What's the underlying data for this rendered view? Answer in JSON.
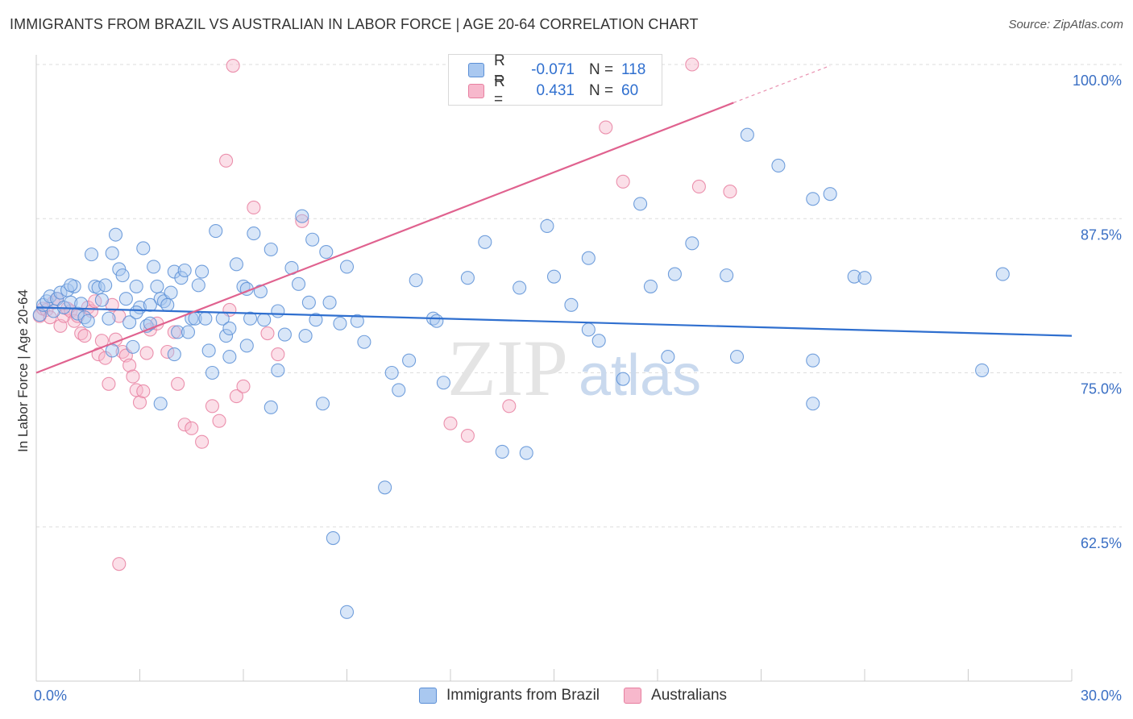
{
  "title": "IMMIGRANTS FROM BRAZIL VS AUSTRALIAN IN LABOR FORCE | AGE 20-64 CORRELATION CHART",
  "source": "Source: ZipAtlas.com",
  "watermark": {
    "zip": "ZIP",
    "atlas": "atlas"
  },
  "colors": {
    "blue_fill": "#a9c8f0",
    "blue_stroke": "#5b8fd6",
    "blue_line": "#2f6fcf",
    "pink_fill": "#f7b8cc",
    "pink_stroke": "#e77fa0",
    "pink_line": "#e0628f",
    "axis_label": "#3a6fc4",
    "grid": "#dddddd"
  },
  "legend_top": {
    "rows": [
      {
        "r_label": "R =",
        "r_value": "-0.071",
        "n_label": "N =",
        "n_value": "118"
      },
      {
        "r_label": "R =",
        "r_value": "0.431",
        "n_label": "N =",
        "n_value": "60"
      }
    ]
  },
  "chart_data": {
    "type": "scatter",
    "title": "IMMIGRANTS FROM BRAZIL VS AUSTRALIAN IN LABOR FORCE | AGE 20-64 CORRELATION CHART",
    "xlabel": "",
    "ylabel": "In Labor Force | Age 20-64",
    "xlim": [
      0,
      30
    ],
    "ylim": [
      50,
      100
    ],
    "x_tick_labels": [
      "0.0%",
      "30.0%"
    ],
    "y_ticks": [
      62.5,
      75.0,
      87.5,
      100.0
    ],
    "y_tick_labels": [
      "62.5%",
      "75.0%",
      "87.5%",
      "100.0%"
    ],
    "legend_position": "bottom",
    "series": [
      {
        "name": "Immigrants from Brazil",
        "r": -0.071,
        "n": 118,
        "trend": {
          "x": [
            0,
            30
          ],
          "y": [
            80.3,
            78.0
          ]
        },
        "points": [
          [
            0.1,
            79.7
          ],
          [
            0.2,
            80.5
          ],
          [
            0.3,
            80.8
          ],
          [
            0.4,
            81.2
          ],
          [
            0.5,
            80.0
          ],
          [
            0.6,
            81.0
          ],
          [
            0.7,
            81.5
          ],
          [
            0.8,
            80.3
          ],
          [
            0.9,
            81.7
          ],
          [
            1.0,
            80.7
          ],
          [
            1.1,
            82.0
          ],
          [
            1.2,
            79.8
          ],
          [
            1.3,
            80.6
          ],
          [
            1.4,
            79.5
          ],
          [
            1.5,
            79.2
          ],
          [
            1.6,
            84.6
          ],
          [
            1.7,
            82.0
          ],
          [
            1.8,
            81.9
          ],
          [
            1.9,
            80.9
          ],
          [
            2.0,
            82.1
          ],
          [
            2.1,
            79.4
          ],
          [
            2.2,
            84.7
          ],
          [
            2.3,
            86.2
          ],
          [
            2.4,
            83.4
          ],
          [
            2.5,
            82.9
          ],
          [
            2.6,
            81.0
          ],
          [
            2.7,
            79.1
          ],
          [
            2.8,
            77.1
          ],
          [
            2.9,
            82.0
          ],
          [
            3.0,
            80.3
          ],
          [
            3.1,
            85.1
          ],
          [
            3.2,
            78.8
          ],
          [
            3.3,
            79.0
          ],
          [
            3.4,
            83.6
          ],
          [
            3.5,
            82.0
          ],
          [
            3.6,
            81.0
          ],
          [
            3.7,
            80.8
          ],
          [
            3.8,
            80.5
          ],
          [
            3.9,
            81.5
          ],
          [
            4.0,
            83.2
          ],
          [
            4.1,
            78.3
          ],
          [
            4.2,
            82.7
          ],
          [
            4.3,
            83.3
          ],
          [
            4.4,
            78.3
          ],
          [
            4.5,
            79.4
          ],
          [
            4.6,
            79.4
          ],
          [
            4.7,
            82.1
          ],
          [
            4.8,
            83.2
          ],
          [
            4.9,
            79.4
          ],
          [
            5.0,
            76.8
          ],
          [
            5.2,
            86.5
          ],
          [
            5.4,
            79.4
          ],
          [
            5.5,
            78.0
          ],
          [
            5.6,
            78.6
          ],
          [
            5.8,
            83.8
          ],
          [
            6.0,
            82.0
          ],
          [
            6.1,
            81.8
          ],
          [
            6.2,
            79.4
          ],
          [
            6.3,
            86.3
          ],
          [
            6.5,
            81.6
          ],
          [
            6.6,
            79.3
          ],
          [
            6.8,
            85.0
          ],
          [
            7.0,
            80.0
          ],
          [
            7.2,
            78.1
          ],
          [
            7.4,
            83.5
          ],
          [
            7.6,
            82.2
          ],
          [
            7.7,
            87.7
          ],
          [
            7.8,
            78.0
          ],
          [
            8.0,
            85.8
          ],
          [
            8.1,
            79.3
          ],
          [
            8.4,
            84.8
          ],
          [
            8.5,
            80.7
          ],
          [
            8.8,
            79.0
          ],
          [
            9.0,
            83.6
          ],
          [
            9.3,
            79.2
          ],
          [
            10.3,
            75.0
          ],
          [
            10.5,
            73.6
          ],
          [
            11.0,
            82.5
          ],
          [
            11.5,
            79.4
          ],
          [
            11.6,
            79.2
          ],
          [
            12.5,
            82.7
          ],
          [
            13.0,
            85.6
          ],
          [
            14.0,
            81.9
          ],
          [
            14.8,
            86.9
          ],
          [
            15.0,
            82.8
          ],
          [
            15.5,
            80.5
          ],
          [
            16.0,
            84.3
          ],
          [
            16.3,
            77.6
          ],
          [
            17.0,
            74.5
          ],
          [
            17.5,
            88.7
          ],
          [
            17.8,
            82.0
          ],
          [
            18.5,
            83.0
          ],
          [
            19.0,
            85.5
          ],
          [
            20.0,
            82.9
          ],
          [
            20.6,
            94.3
          ],
          [
            21.5,
            91.8
          ],
          [
            22.5,
            89.1
          ],
          [
            23.0,
            89.5
          ],
          [
            23.7,
            82.8
          ],
          [
            24.0,
            82.7
          ],
          [
            20.3,
            76.3
          ],
          [
            22.5,
            72.5
          ],
          [
            18.3,
            76.3
          ],
          [
            10.8,
            76.0
          ],
          [
            9.5,
            77.5
          ],
          [
            11.8,
            74.2
          ],
          [
            13.5,
            68.6
          ],
          [
            14.2,
            68.5
          ],
          [
            16.0,
            78.5
          ],
          [
            6.8,
            72.2
          ],
          [
            7.9,
            80.7
          ],
          [
            8.3,
            72.5
          ],
          [
            9.0,
            55.6
          ],
          [
            5.1,
            75.0
          ],
          [
            5.6,
            76.3
          ],
          [
            6.1,
            77.2
          ],
          [
            7.0,
            75.2
          ],
          [
            3.6,
            72.5
          ],
          [
            2.2,
            76.8
          ],
          [
            8.6,
            61.6
          ],
          [
            10.1,
            65.7
          ],
          [
            4.0,
            76.5
          ],
          [
            3.3,
            80.5
          ],
          [
            22.5,
            76.0
          ],
          [
            27.4,
            75.2
          ],
          [
            28.0,
            83.0
          ],
          [
            1.0,
            82.1
          ],
          [
            2.9,
            79.9
          ]
        ]
      },
      {
        "name": "Australians",
        "r": 0.431,
        "n": 60,
        "trend": {
          "x": [
            0,
            20.2
          ],
          "y": [
            75.0,
            96.9
          ]
        },
        "trend_dashed": {
          "x": [
            20.2,
            23.0
          ],
          "y": [
            96.9,
            99.9
          ]
        },
        "points": [
          [
            0.1,
            79.6
          ],
          [
            0.2,
            80.2
          ],
          [
            0.3,
            80.1
          ],
          [
            0.4,
            79.5
          ],
          [
            0.5,
            80.7
          ],
          [
            0.6,
            81.0
          ],
          [
            0.7,
            78.8
          ],
          [
            0.8,
            79.6
          ],
          [
            0.9,
            80.2
          ],
          [
            1.0,
            80.0
          ],
          [
            1.1,
            79.2
          ],
          [
            1.2,
            79.6
          ],
          [
            1.3,
            78.2
          ],
          [
            1.4,
            78.0
          ],
          [
            1.5,
            80.3
          ],
          [
            1.6,
            80.0
          ],
          [
            1.7,
            80.8
          ],
          [
            1.8,
            76.5
          ],
          [
            1.9,
            77.6
          ],
          [
            2.0,
            76.2
          ],
          [
            2.1,
            74.1
          ],
          [
            2.2,
            80.5
          ],
          [
            2.3,
            77.7
          ],
          [
            2.4,
            79.6
          ],
          [
            2.5,
            76.7
          ],
          [
            2.6,
            76.4
          ],
          [
            2.7,
            75.6
          ],
          [
            2.8,
            74.7
          ],
          [
            2.9,
            73.6
          ],
          [
            3.0,
            72.6
          ],
          [
            3.1,
            73.5
          ],
          [
            3.2,
            76.6
          ],
          [
            3.3,
            78.5
          ],
          [
            3.5,
            79.0
          ],
          [
            3.8,
            76.7
          ],
          [
            4.0,
            78.3
          ],
          [
            4.1,
            74.1
          ],
          [
            4.3,
            70.8
          ],
          [
            4.5,
            70.5
          ],
          [
            4.8,
            69.4
          ],
          [
            5.1,
            72.3
          ],
          [
            5.3,
            71.1
          ],
          [
            5.6,
            80.1
          ],
          [
            5.8,
            73.1
          ],
          [
            6.0,
            73.9
          ],
          [
            6.3,
            88.4
          ],
          [
            5.5,
            92.2
          ],
          [
            5.7,
            99.9
          ],
          [
            6.7,
            78.2
          ],
          [
            7.0,
            76.5
          ],
          [
            7.7,
            87.3
          ],
          [
            12.0,
            70.9
          ],
          [
            12.5,
            69.9
          ],
          [
            13.7,
            72.3
          ],
          [
            16.5,
            94.9
          ],
          [
            17.0,
            90.5
          ],
          [
            19.2,
            90.1
          ],
          [
            20.1,
            89.7
          ],
          [
            19.0,
            100.0
          ],
          [
            2.4,
            59.5
          ]
        ]
      }
    ]
  }
}
